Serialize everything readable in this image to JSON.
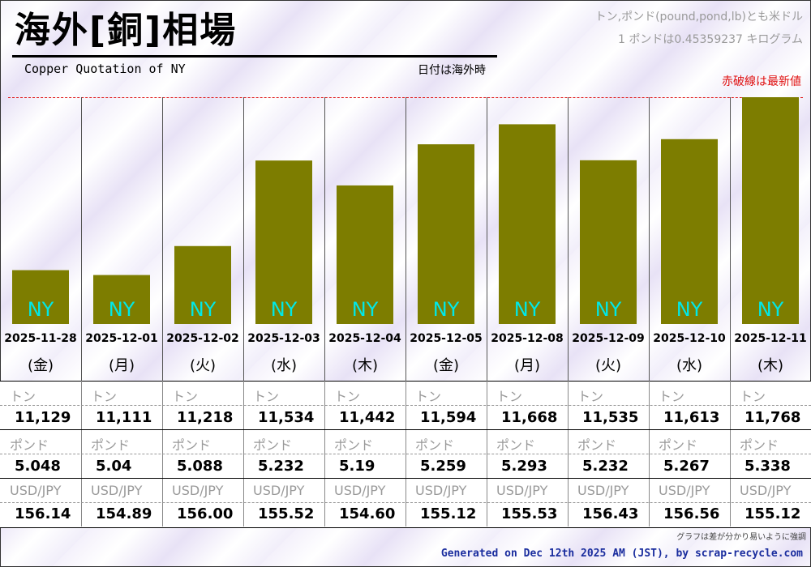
{
  "header": {
    "title": "海外[銅]相場",
    "subtitle": "Copper Quotation of NY",
    "date_note": "日付は海外時",
    "unit_note_1": "トン,ポンド(pound,pond,lb)とも米ドル",
    "unit_note_2": "1 ポンドは0.45359237 キログラム",
    "latest_note": "赤破線は最新値"
  },
  "colors": {
    "bar": "#7d7d00",
    "bar_label": "#00e8e8",
    "latest_line": "#e02020",
    "generated_text": "#1a2d9e"
  },
  "chart_data": {
    "type": "bar",
    "market_label": "NY",
    "categories": [
      "2025-11-28",
      "2025-12-01",
      "2025-12-02",
      "2025-12-03",
      "2025-12-04",
      "2025-12-05",
      "2025-12-08",
      "2025-12-09",
      "2025-12-10",
      "2025-12-11"
    ],
    "weekdays": [
      "(金)",
      "(月)",
      "(火)",
      "(水)",
      "(木)",
      "(金)",
      "(月)",
      "(火)",
      "(水)",
      "(木)"
    ],
    "values": [
      11129,
      11111,
      11218,
      11534,
      11442,
      11594,
      11668,
      11535,
      11613,
      11768
    ],
    "latest_value": 11768
  },
  "table": {
    "row_labels": {
      "ton": "トン",
      "pound": "ポンド",
      "usdjpy": "USD/JPY"
    },
    "ton": [
      "11,129",
      "11,111",
      "11,218",
      "11,534",
      "11,442",
      "11,594",
      "11,668",
      "11,535",
      "11,613",
      "11,768"
    ],
    "pound": [
      "5.048",
      "5.04",
      "5.088",
      "5.232",
      "5.19",
      "5.259",
      "5.293",
      "5.232",
      "5.267",
      "5.338"
    ],
    "usdjpy": [
      "156.14",
      "154.89",
      "156.00",
      "155.52",
      "154.60",
      "155.12",
      "155.53",
      "156.43",
      "156.56",
      "155.12"
    ]
  },
  "footer": {
    "footnote": "グラフは差が分かり易いように強調",
    "generated": "Generated on Dec 12th 2025 AM (JST), by scrap-recycle.com"
  }
}
